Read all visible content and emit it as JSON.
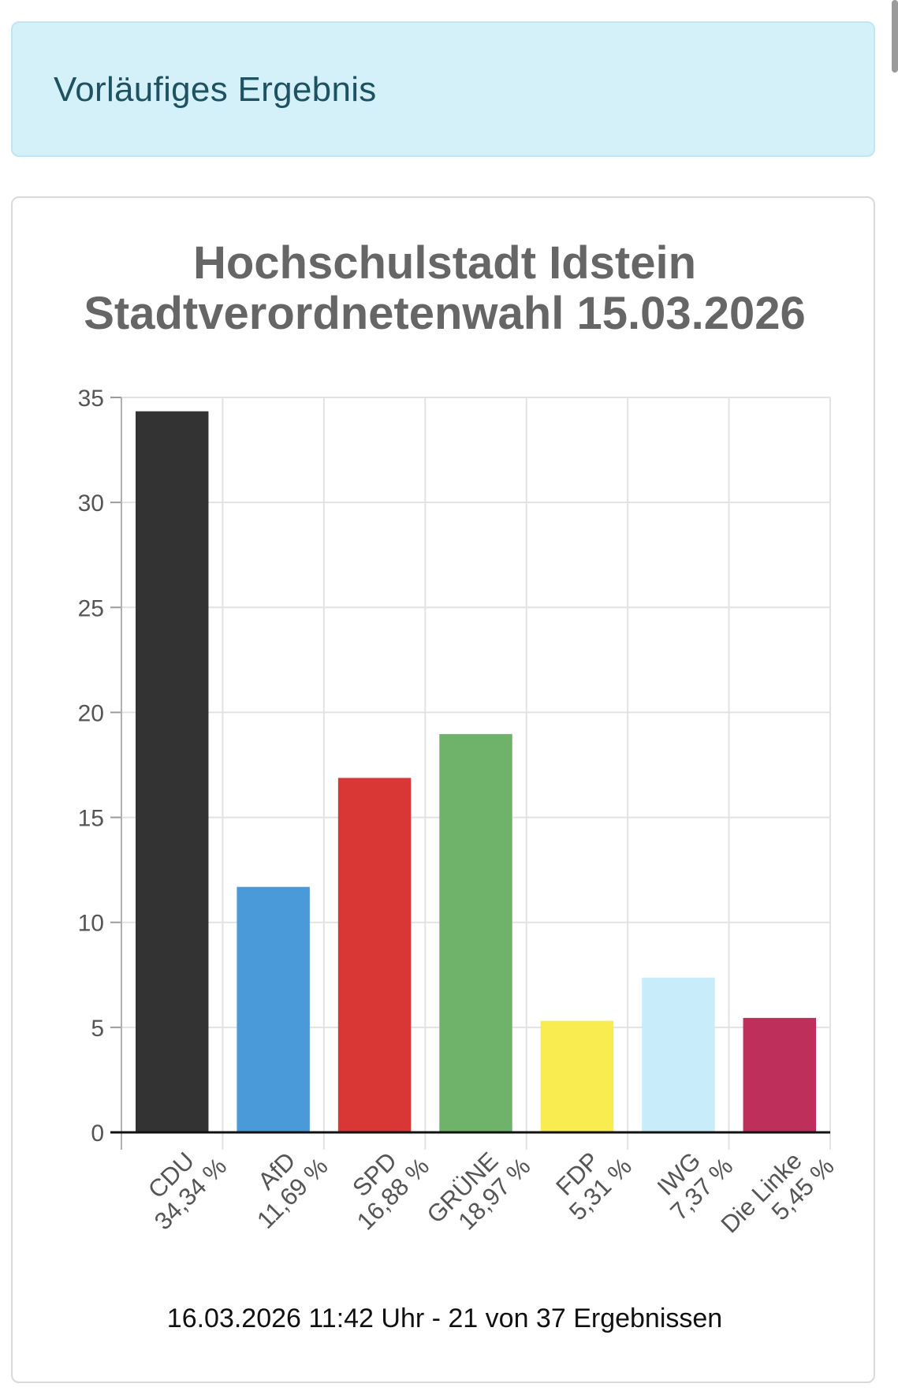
{
  "banner": {
    "text": "Vorläufiges Ergebnis"
  },
  "chart_data": {
    "type": "bar",
    "title_lines": [
      "Hochschulstadt Idstein",
      "Stadtverordnetenwahl 15.03.2026"
    ],
    "categories": [
      "CDU",
      "AfD",
      "SPD",
      "GRÜNE",
      "FDP",
      "IWG",
      "Die Linke"
    ],
    "value_labels": [
      "34,34 %",
      "11,69 %",
      "16,88 %",
      "18,97 %",
      "5,31 %",
      "7,37 %",
      "5,45 %"
    ],
    "values": [
      34.34,
      11.69,
      16.88,
      18.97,
      5.31,
      7.37,
      5.45
    ],
    "colors": [
      "#333333",
      "#4a9ad9",
      "#d93636",
      "#6fb36b",
      "#f9ec50",
      "#c9ecfb",
      "#bf2f5c"
    ],
    "ylim": [
      0,
      35
    ],
    "yticks": [
      "0",
      "5",
      "10",
      "15",
      "20",
      "25",
      "30",
      "35"
    ],
    "grid": true,
    "xlabel": "",
    "ylabel": ""
  },
  "footer": {
    "text": "16.03.2026 11:42 Uhr - 21 von 37 Ergebnissen"
  }
}
